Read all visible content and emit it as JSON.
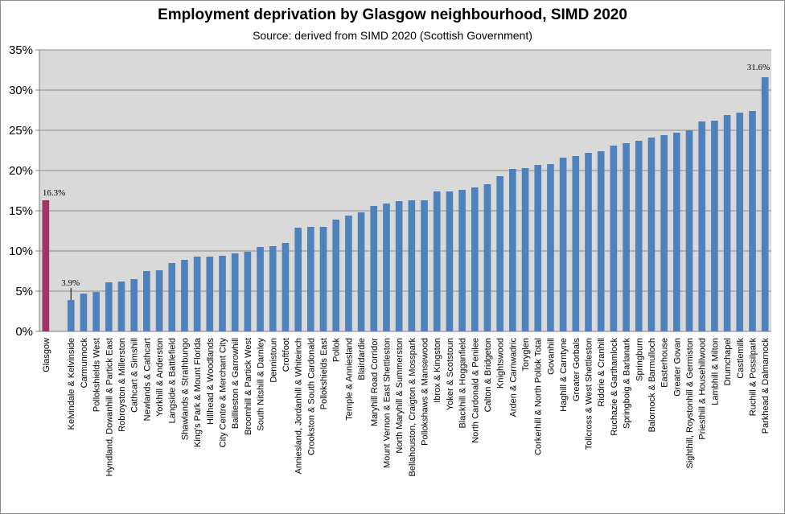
{
  "chart_data": {
    "type": "bar",
    "title": "Employment deprivation by Glasgow neighbourhood, SIMD 2020",
    "subtitle": "Source: derived from SIMD 2020 (Scottish Government)",
    "xlabel": "",
    "ylabel": "",
    "ylim": [
      0,
      35
    ],
    "yticks": [
      "0%",
      "5%",
      "10%",
      "15%",
      "20%",
      "25%",
      "30%",
      "35%"
    ],
    "grid": true,
    "legend": "none",
    "colors": {
      "highlight": "#a0336a",
      "bar": "#4f81bd",
      "plot_bg": "#d9d9d9"
    },
    "categories": [
      "Glasgow",
      "Kelvindale & Kelvinside",
      "Carmunnock",
      "Pollokshields West",
      "Hyndland, Dowanhill & Partick East",
      "Robroyston & Millerston",
      "Cathcart & Simshill",
      "Newlands & Cathcart",
      "Yorkhill & Anderston",
      "Langside & Battlefield",
      "Shawlands & Strathbungo",
      "King's Park & Mount Florida",
      "Hillhead & Woodlands",
      "City Centre & Merchant City",
      "Baillieston & Garrowhill",
      "Broomhill & Partick West",
      "South Nitshill & Darnley",
      "Dennistoun",
      "Croftfoot",
      "Anniesland, Jordanhill & Whiteinch",
      "Crookston & South Cardonald",
      "Pollokshields East",
      "Pollok",
      "Temple & Anniesland",
      "Blairdardie",
      "Maryhill Road Corridor",
      "Mount Vernon & East Shettleston",
      "North Maryhill & Summerston",
      "Bellahouston, Craigton & Mosspark",
      "Pollokshaws & Mansewood",
      "Ibrox & Kingston",
      "Yoker & Scotstoun",
      "Blackhill & Hogganfield",
      "North Cardonald & Penilee",
      "Calton & Bridgeton",
      "Knightswood",
      "Arden & Carnwadric",
      "Toryglen",
      "Corkerhill & North Pollok Total",
      "Govanhill",
      "Haghill & Carntyne",
      "Greater Gorbals",
      "Tollcross & West Shettleston",
      "Riddrie & Cranhill",
      "Ruchazie & Garthamlock",
      "Springboig & Barlanark",
      "Springburn",
      "Balornock & Barmulloch",
      "Easterhouse",
      "Greater Govan",
      "Sighthill, Roystonhill & Germiston",
      "Priesthill & Househillwood",
      "Lambhill & Milton",
      "Drumchapel",
      "Castlemilk",
      "Ruchill & Possilpark",
      "Parkhead & Dalmarnock"
    ],
    "values": [
      16.3,
      3.9,
      4.7,
      4.9,
      6.1,
      6.2,
      6.5,
      7.5,
      7.6,
      8.5,
      8.9,
      9.3,
      9.3,
      9.4,
      9.7,
      9.9,
      10.5,
      10.6,
      11.0,
      12.9,
      13.0,
      13.0,
      13.9,
      14.4,
      14.8,
      15.6,
      15.9,
      16.2,
      16.3,
      16.3,
      17.4,
      17.4,
      17.6,
      17.9,
      18.3,
      19.3,
      20.2,
      20.3,
      20.7,
      20.8,
      21.6,
      21.8,
      22.2,
      22.4,
      23.1,
      23.4,
      23.7,
      24.1,
      24.4,
      24.7,
      25.0,
      26.1,
      26.2,
      26.9,
      27.2,
      27.4,
      31.6
    ],
    "data_labels": [
      {
        "category": "Glasgow",
        "text": "16.3%"
      },
      {
        "category": "Kelvindale & Kelvinside",
        "text": "3.9%"
      },
      {
        "category": "Parkhead & Dalmarnock",
        "text": "31.6%"
      }
    ]
  }
}
